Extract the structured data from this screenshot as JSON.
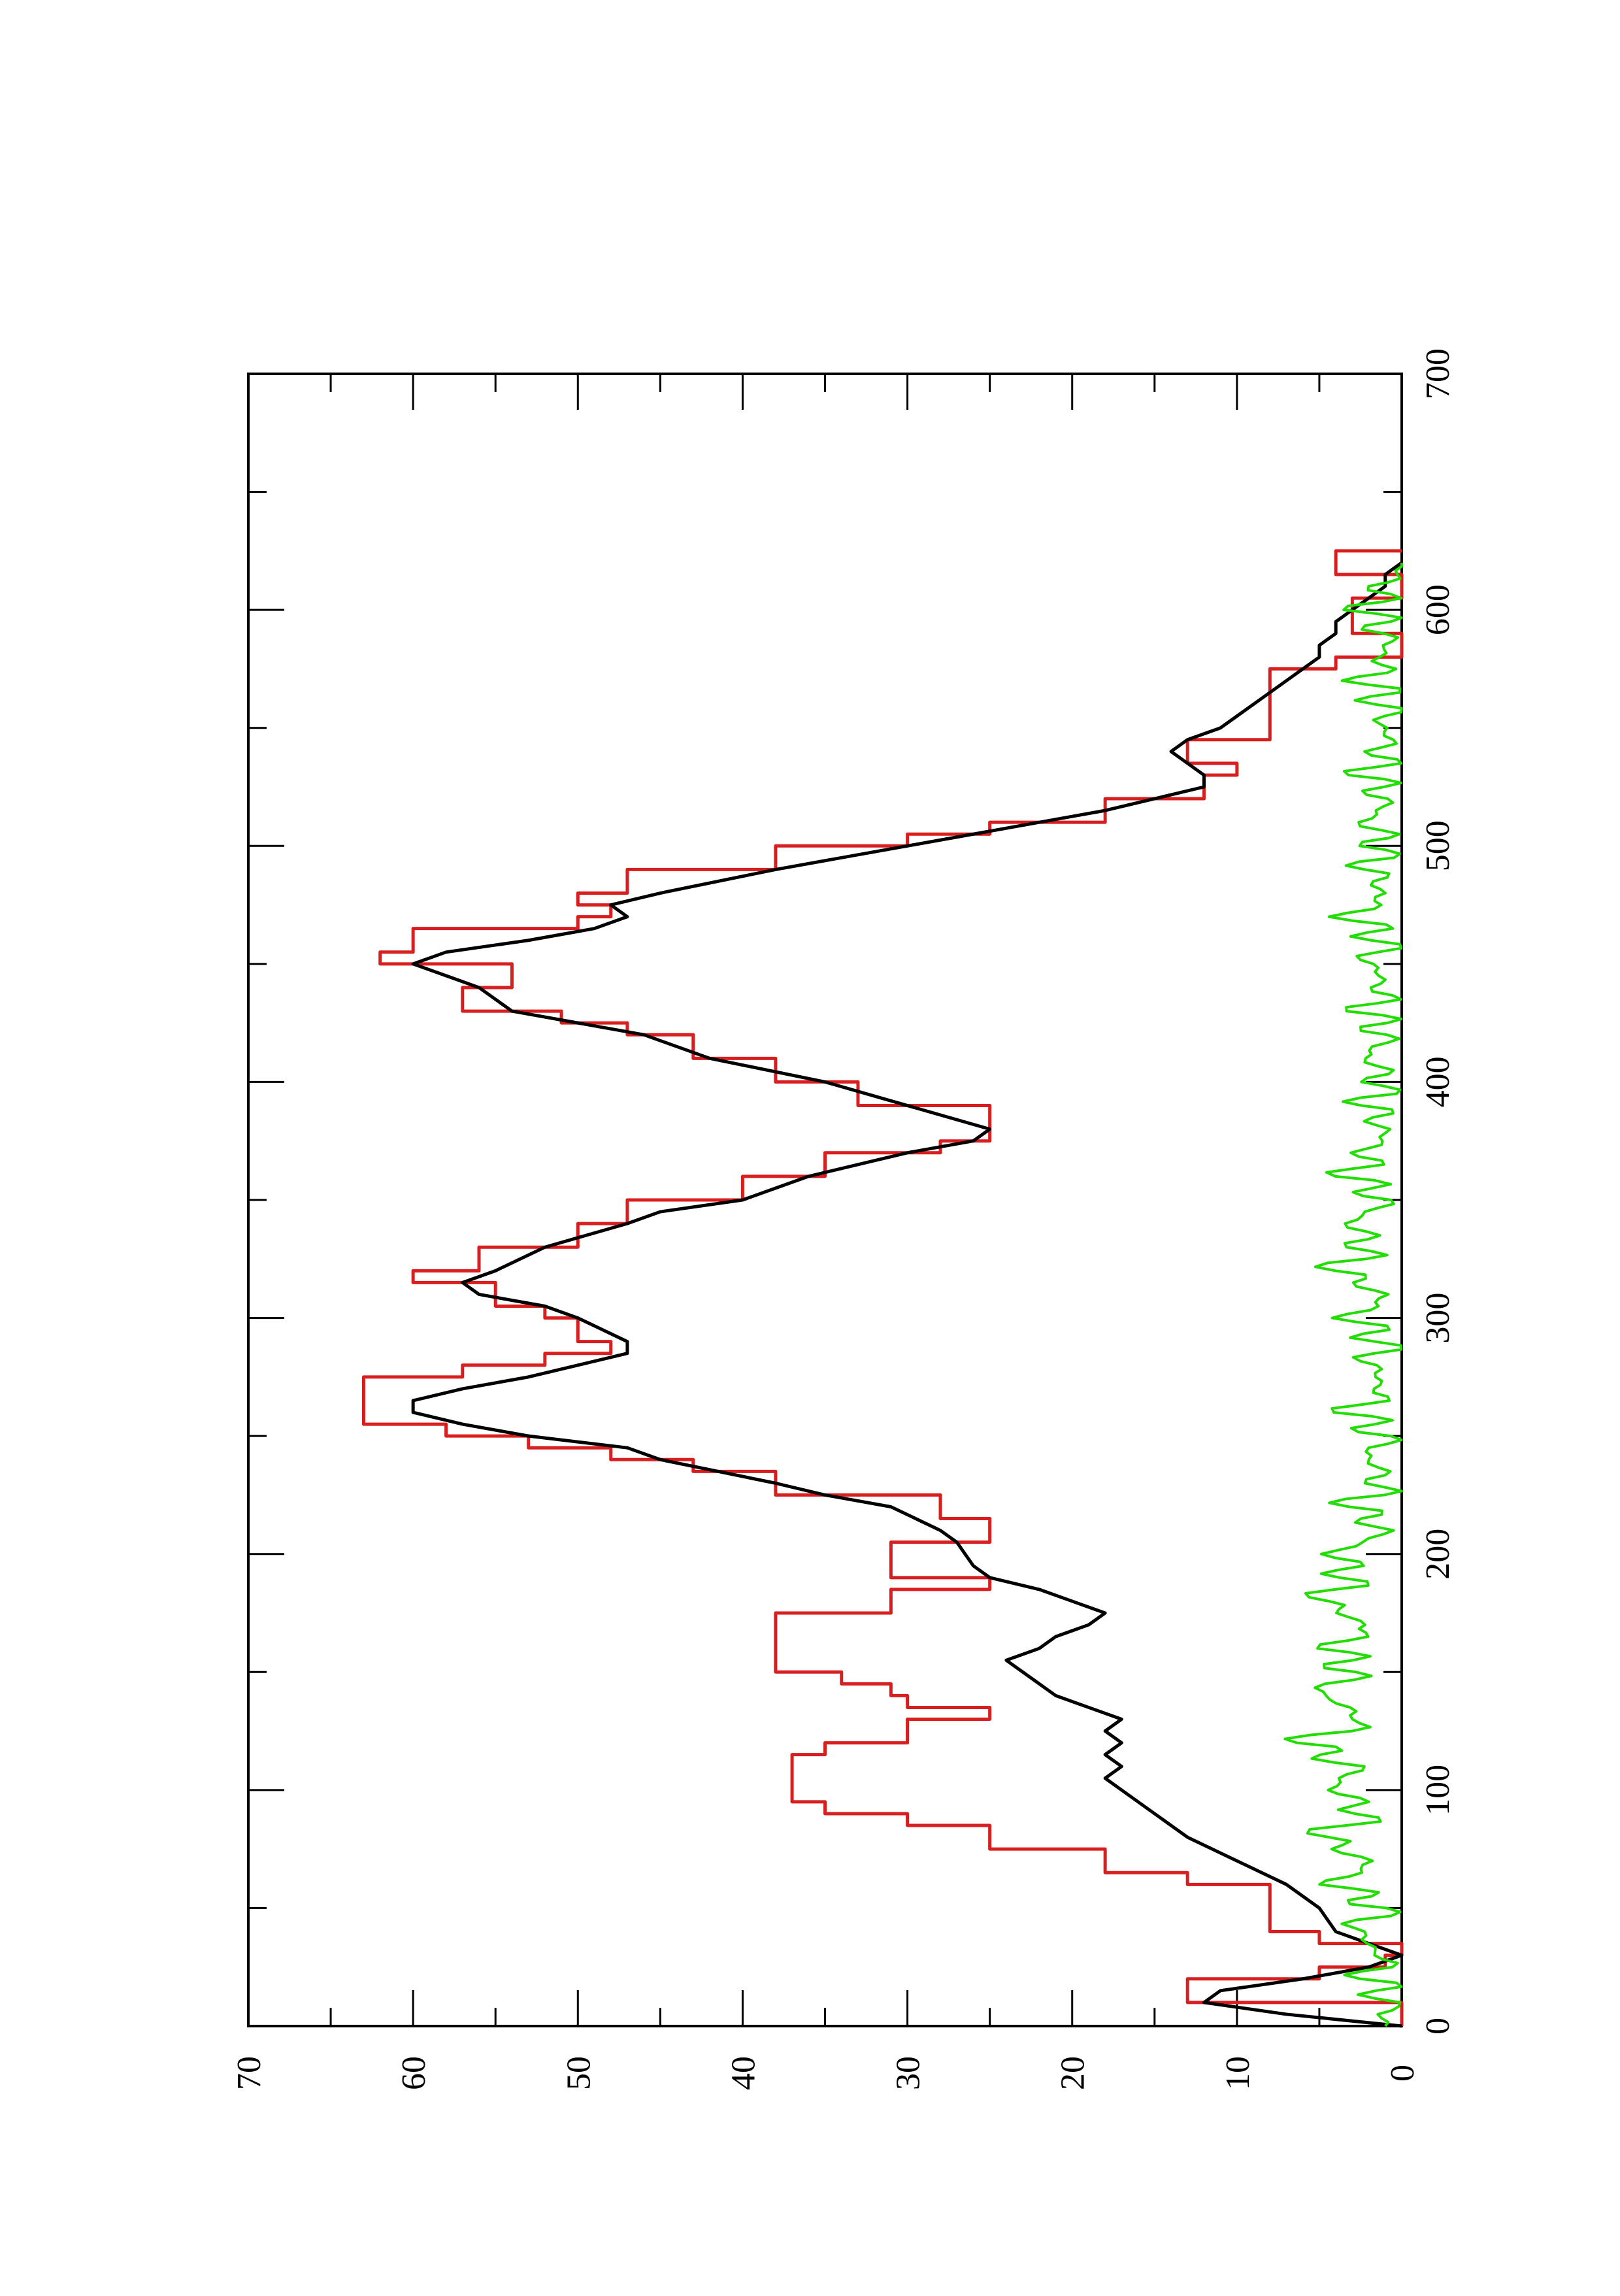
{
  "chart_data": {
    "type": "line",
    "orientation": "rotated-90-ccw",
    "title": "",
    "xlabel": "",
    "ylabel": "",
    "xlim": [
      0,
      700
    ],
    "ylim": [
      0,
      70
    ],
    "x_ticks": [
      0,
      100,
      200,
      300,
      400,
      500,
      600,
      700
    ],
    "y_ticks": [
      0,
      10,
      20,
      30,
      40,
      50,
      60,
      70
    ],
    "x_tick_labels": [
      "0",
      "100",
      "200",
      "300",
      "400",
      "500",
      "600",
      "700"
    ],
    "y_tick_labels": [
      "0",
      "10",
      "20",
      "30",
      "40",
      "50",
      "60",
      "70"
    ],
    "grid": false,
    "legend": "none",
    "series": [
      {
        "color": "#d81e1e",
        "style": "step",
        "points": [
          [
            0,
            0
          ],
          [
            10,
            13
          ],
          [
            15,
            13
          ],
          [
            20,
            5
          ],
          [
            25,
            1
          ],
          [
            30,
            0
          ],
          [
            35,
            5
          ],
          [
            40,
            8
          ],
          [
            55,
            8
          ],
          [
            60,
            13
          ],
          [
            65,
            18
          ],
          [
            75,
            25
          ],
          [
            85,
            30
          ],
          [
            90,
            35
          ],
          [
            95,
            37
          ],
          [
            105,
            37
          ],
          [
            115,
            35
          ],
          [
            120,
            30
          ],
          [
            130,
            25
          ],
          [
            135,
            30
          ],
          [
            140,
            31
          ],
          [
            145,
            34
          ],
          [
            150,
            38
          ],
          [
            160,
            38
          ],
          [
            175,
            31
          ],
          [
            185,
            25
          ],
          [
            190,
            31
          ],
          [
            200,
            31
          ],
          [
            205,
            25
          ],
          [
            215,
            28
          ],
          [
            225,
            38
          ],
          [
            235,
            43
          ],
          [
            240,
            48
          ],
          [
            245,
            53
          ],
          [
            250,
            58
          ],
          [
            255,
            63
          ],
          [
            260,
            63
          ],
          [
            275,
            57
          ],
          [
            280,
            52
          ],
          [
            285,
            48
          ],
          [
            290,
            50
          ],
          [
            300,
            52
          ],
          [
            305,
            55
          ],
          [
            315,
            60
          ],
          [
            320,
            56
          ],
          [
            330,
            50
          ],
          [
            340,
            47
          ],
          [
            350,
            40
          ],
          [
            360,
            35
          ],
          [
            370,
            28
          ],
          [
            375,
            25
          ],
          [
            380,
            25
          ],
          [
            390,
            33
          ],
          [
            400,
            38
          ],
          [
            410,
            43
          ],
          [
            420,
            47
          ],
          [
            425,
            51
          ],
          [
            430,
            57
          ],
          [
            440,
            54
          ],
          [
            445,
            54
          ],
          [
            450,
            62
          ],
          [
            455,
            60
          ],
          [
            465,
            50
          ],
          [
            470,
            48
          ],
          [
            475,
            50
          ],
          [
            480,
            47
          ],
          [
            490,
            38
          ],
          [
            500,
            30
          ],
          [
            505,
            25
          ],
          [
            510,
            18
          ],
          [
            520,
            12
          ],
          [
            530,
            10
          ],
          [
            535,
            13
          ],
          [
            545,
            8
          ],
          [
            560,
            8
          ],
          [
            575,
            4
          ],
          [
            580,
            0
          ],
          [
            585,
            0
          ],
          [
            590,
            3
          ],
          [
            600,
            3
          ],
          [
            605,
            0
          ],
          [
            610,
            0
          ],
          [
            615,
            4
          ],
          [
            620,
            4
          ],
          [
            625,
            0
          ]
        ]
      },
      {
        "color": "#000000",
        "style": "line",
        "points": [
          [
            0,
            0
          ],
          [
            5,
            7
          ],
          [
            10,
            12
          ],
          [
            15,
            11
          ],
          [
            20,
            6
          ],
          [
            25,
            2
          ],
          [
            30,
            0
          ],
          [
            35,
            2
          ],
          [
            40,
            4
          ],
          [
            50,
            5
          ],
          [
            60,
            7
          ],
          [
            70,
            10
          ],
          [
            80,
            13
          ],
          [
            90,
            15
          ],
          [
            100,
            17
          ],
          [
            105,
            18
          ],
          [
            110,
            17
          ],
          [
            115,
            18
          ],
          [
            120,
            17
          ],
          [
            125,
            18
          ],
          [
            130,
            17
          ],
          [
            135,
            19
          ],
          [
            140,
            21
          ],
          [
            145,
            22
          ],
          [
            150,
            23
          ],
          [
            155,
            24
          ],
          [
            160,
            22
          ],
          [
            165,
            21
          ],
          [
            170,
            19
          ],
          [
            175,
            18
          ],
          [
            180,
            20
          ],
          [
            185,
            22
          ],
          [
            190,
            25
          ],
          [
            195,
            26
          ],
          [
            205,
            27
          ],
          [
            210,
            28
          ],
          [
            220,
            31
          ],
          [
            225,
            35
          ],
          [
            230,
            38
          ],
          [
            240,
            45
          ],
          [
            245,
            47
          ],
          [
            250,
            53
          ],
          [
            255,
            57
          ],
          [
            260,
            60
          ],
          [
            265,
            60
          ],
          [
            270,
            57
          ],
          [
            275,
            53
          ],
          [
            280,
            50
          ],
          [
            285,
            47
          ],
          [
            290,
            47
          ],
          [
            300,
            50
          ],
          [
            305,
            52
          ],
          [
            310,
            56
          ],
          [
            315,
            57
          ],
          [
            320,
            55
          ],
          [
            330,
            52
          ],
          [
            340,
            47
          ],
          [
            345,
            45
          ],
          [
            350,
            40
          ],
          [
            360,
            36
          ],
          [
            370,
            30
          ],
          [
            375,
            26
          ],
          [
            380,
            25
          ],
          [
            390,
            30
          ],
          [
            400,
            35
          ],
          [
            410,
            42
          ],
          [
            420,
            46
          ],
          [
            425,
            50
          ],
          [
            430,
            54
          ],
          [
            440,
            56
          ],
          [
            445,
            58
          ],
          [
            450,
            60
          ],
          [
            455,
            58
          ],
          [
            460,
            53
          ],
          [
            465,
            49
          ],
          [
            470,
            47
          ],
          [
            475,
            48
          ],
          [
            480,
            45
          ],
          [
            490,
            38
          ],
          [
            500,
            30
          ],
          [
            505,
            26
          ],
          [
            510,
            22
          ],
          [
            515,
            18
          ],
          [
            520,
            15
          ],
          [
            525,
            12
          ],
          [
            530,
            12
          ],
          [
            535,
            13
          ],
          [
            540,
            14
          ],
          [
            545,
            13
          ],
          [
            550,
            11
          ],
          [
            560,
            9
          ],
          [
            570,
            7
          ],
          [
            575,
            6
          ],
          [
            580,
            5
          ],
          [
            585,
            5
          ],
          [
            590,
            4
          ],
          [
            595,
            4
          ],
          [
            600,
            3
          ],
          [
            605,
            2
          ],
          [
            610,
            1
          ],
          [
            615,
            1
          ],
          [
            620,
            0
          ]
        ]
      },
      {
        "color": "#22dd00",
        "style": "noise-line",
        "x_range": [
          0,
          620
        ],
        "points": [
          [
            0,
            1
          ],
          [
            10,
            0.5
          ],
          [
            20,
            2
          ],
          [
            30,
            1
          ],
          [
            40,
            3
          ],
          [
            50,
            1
          ],
          [
            60,
            4
          ],
          [
            70,
            2
          ],
          [
            80,
            5
          ],
          [
            90,
            2
          ],
          [
            100,
            4
          ],
          [
            110,
            3
          ],
          [
            120,
            6
          ],
          [
            130,
            2
          ],
          [
            140,
            5
          ],
          [
            150,
            3
          ],
          [
            160,
            4
          ],
          [
            170,
            2
          ],
          [
            180,
            5
          ],
          [
            190,
            3
          ],
          [
            200,
            4
          ],
          [
            210,
            1
          ],
          [
            220,
            3
          ],
          [
            230,
            1
          ],
          [
            240,
            2
          ],
          [
            250,
            1
          ],
          [
            260,
            3
          ],
          [
            270,
            1
          ],
          [
            280,
            2
          ],
          [
            290,
            1
          ],
          [
            300,
            3
          ],
          [
            310,
            1
          ],
          [
            320,
            4
          ],
          [
            330,
            2
          ],
          [
            340,
            3
          ],
          [
            350,
            1
          ],
          [
            360,
            3
          ],
          [
            370,
            2
          ],
          [
            380,
            1
          ],
          [
            390,
            2
          ],
          [
            400,
            1
          ],
          [
            410,
            2
          ],
          [
            420,
            1
          ],
          [
            430,
            2
          ],
          [
            440,
            1
          ],
          [
            450,
            2
          ],
          [
            460,
            1
          ],
          [
            470,
            3
          ],
          [
            480,
            1
          ],
          [
            490,
            2
          ],
          [
            500,
            1
          ],
          [
            510,
            2
          ],
          [
            520,
            1
          ],
          [
            530,
            2
          ],
          [
            540,
            1
          ],
          [
            550,
            1
          ],
          [
            560,
            1
          ],
          [
            570,
            2
          ],
          [
            580,
            1
          ],
          [
            590,
            1
          ],
          [
            600,
            2
          ],
          [
            610,
            1
          ],
          [
            620,
            0
          ]
        ]
      }
    ]
  }
}
